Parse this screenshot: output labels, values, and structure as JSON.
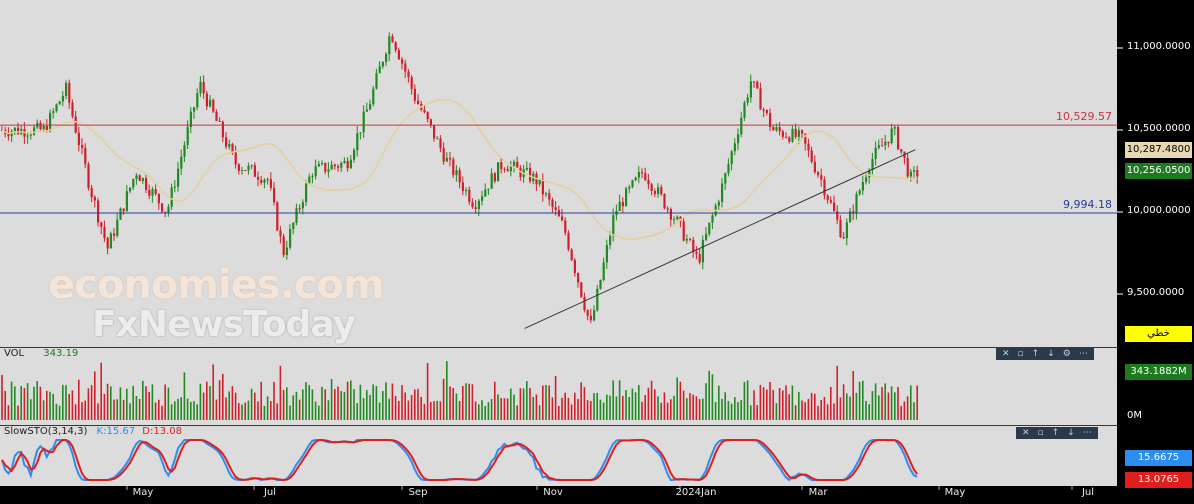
{
  "chart_data": {
    "type": "candlestick",
    "price_axis": {
      "ticks": [
        "11,000.0000",
        "10,500.0000",
        "10,000.0000",
        "9,500.0000"
      ],
      "tick_values": [
        11000,
        10500,
        10000,
        9500
      ],
      "range": [
        9200,
        11200
      ]
    },
    "horizontal_lines": [
      {
        "value": 10529.57,
        "label": "10,529.57",
        "color": "#d0303a"
      },
      {
        "value": 9994.18,
        "label": "9,994.18",
        "color": "#2a3d9a"
      }
    ],
    "trendline": {
      "from": {
        "date": "2023-10-25",
        "value": 9290
      },
      "to": {
        "date": "2024-04-20",
        "value": 10380
      }
    },
    "price_tags": {
      "ma_value": {
        "text": "10,287.4800",
        "color": "#e9d9b2"
      },
      "last_price": {
        "text": "10,256.0500",
        "color": "#1e7a1e"
      },
      "button": {
        "text": "خطي",
        "color": "#ffff00"
      }
    },
    "x_axis": {
      "ticks": [
        "May",
        "Jul",
        "Sep",
        "Nov",
        "2024Jan",
        "Mar",
        "May",
        "Jul"
      ]
    },
    "series_colors": {
      "up": "#1f8a1f",
      "down": "#d21e2a",
      "ma": "#e6cf9a"
    },
    "volume": {
      "label": "VOL",
      "value": "343.19",
      "tag": "343.1882M",
      "zero_label": "0M"
    },
    "stochastic": {
      "label": "SlowSTO(3,14,3)",
      "k_label": "K:15.67",
      "d_label": "D:13.08",
      "k_tag": "15.6675",
      "d_tag": "13.0765",
      "k_color": "#2d8cf0",
      "d_color": "#e01e1e"
    },
    "key_points": [
      {
        "date": "2023-03-20",
        "value": 10500
      },
      {
        "date": "2023-03-30",
        "value": 10750
      },
      {
        "date": "2023-04-10",
        "value": 10150
      },
      {
        "date": "2023-04-18",
        "value": 9780
      },
      {
        "date": "2023-05-01",
        "value": 10250
      },
      {
        "date": "2023-05-15",
        "value": 10000
      },
      {
        "date": "2023-05-30",
        "value": 10780
      },
      {
        "date": "2023-06-15",
        "value": 10300
      },
      {
        "date": "2023-06-30",
        "value": 10200
      },
      {
        "date": "2023-07-07",
        "value": 9750
      },
      {
        "date": "2023-07-20",
        "value": 10250
      },
      {
        "date": "2023-08-05",
        "value": 10300
      },
      {
        "date": "2023-08-15",
        "value": 10650
      },
      {
        "date": "2023-08-25",
        "value": 11100
      },
      {
        "date": "2023-09-05",
        "value": 10700
      },
      {
        "date": "2023-09-20",
        "value": 10300
      },
      {
        "date": "2023-10-02",
        "value": 10050
      },
      {
        "date": "2023-10-15",
        "value": 10300
      },
      {
        "date": "2023-10-30",
        "value": 10200
      },
      {
        "date": "2023-11-12",
        "value": 9900
      },
      {
        "date": "2023-11-24",
        "value": 9300
      },
      {
        "date": "2023-12-05",
        "value": 10000
      },
      {
        "date": "2023-12-18",
        "value": 10250
      },
      {
        "date": "2024-01-02",
        "value": 9950
      },
      {
        "date": "2024-01-12",
        "value": 9700
      },
      {
        "date": "2024-01-24",
        "value": 10200
      },
      {
        "date": "2024-02-05",
        "value": 10800
      },
      {
        "date": "2024-02-15",
        "value": 10500
      },
      {
        "date": "2024-02-28",
        "value": 10450
      },
      {
        "date": "2024-03-08",
        "value": 10200
      },
      {
        "date": "2024-03-18",
        "value": 9850
      },
      {
        "date": "2024-03-30",
        "value": 10300
      },
      {
        "date": "2024-04-10",
        "value": 10500
      },
      {
        "date": "2024-04-18",
        "value": 10200
      },
      {
        "date": "2024-04-22",
        "value": 10256
      }
    ]
  },
  "watermark": {
    "line1": "economies.com",
    "line2": "FxNewsToday"
  },
  "toolbar": {
    "icons": [
      "close-icon",
      "restore-icon",
      "move-up-icon",
      "move-down-icon",
      "settings-icon",
      "more-icon"
    ]
  }
}
